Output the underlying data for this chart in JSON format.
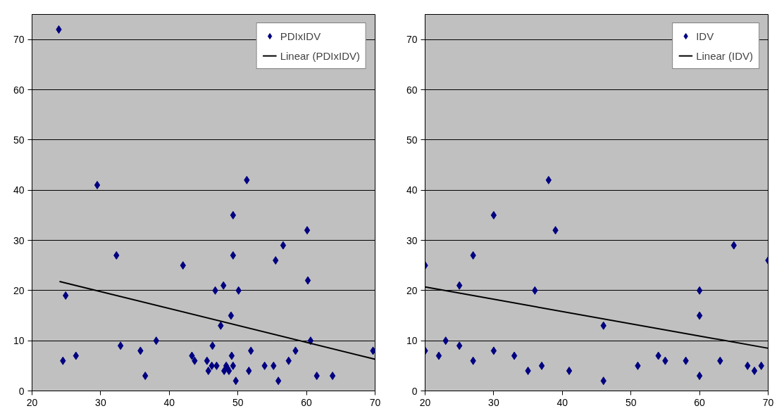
{
  "chart_data": [
    {
      "type": "scatter",
      "xlim": [
        20,
        70
      ],
      "xticks": [
        20,
        30,
        40,
        50,
        60,
        70
      ],
      "ylim": [
        0,
        75
      ],
      "yticks": [
        0,
        10,
        20,
        30,
        40,
        50,
        60,
        70
      ],
      "grid": "y",
      "legend": "top right",
      "series": [
        {
          "name": "PDIxIDV",
          "marker": "diamond",
          "color": "#000080",
          "x": [
            23.9,
            24.5,
            24.9,
            26.4,
            29.5,
            32.3,
            32.9,
            35.8,
            36.5,
            38.1,
            42,
            43.3,
            43.7,
            45.5,
            45.7,
            46.2,
            46.3,
            46.7,
            46.9,
            47.5,
            47.9,
            48,
            48.3,
            48.5,
            48.7,
            49,
            49.1,
            49.3,
            49.3,
            49.3,
            49.7,
            50.1,
            51.3,
            51.6,
            51.9,
            53.9,
            55.2,
            55.5,
            55.9,
            56.6,
            57.4,
            58.4,
            60.1,
            60.2,
            60.6,
            61.5,
            63.8,
            69.7
          ],
          "values": [
            72,
            6,
            19,
            7,
            41,
            27,
            9,
            8,
            3,
            10,
            25,
            7,
            6,
            6,
            4,
            5,
            9,
            20,
            5,
            13,
            21,
            4,
            5,
            4.5,
            4,
            15,
            7,
            35,
            27,
            5,
            2,
            20,
            42,
            4,
            8,
            5,
            5,
            26,
            2,
            29,
            6,
            8,
            32,
            22,
            10,
            3,
            3,
            8
          ]
        },
        {
          "name": "Linear (PDIxIDV)",
          "type": "line",
          "color": "#000000",
          "x": [
            24,
            70
          ],
          "values": [
            21.8,
            6.3
          ]
        }
      ]
    },
    {
      "type": "scatter",
      "xlim": [
        20,
        70
      ],
      "xticks": [
        20,
        30,
        40,
        50,
        60,
        70
      ],
      "ylim": [
        0,
        75
      ],
      "yticks": [
        0,
        10,
        20,
        30,
        40,
        50,
        60,
        70
      ],
      "grid": "y",
      "legend": "top right",
      "series": [
        {
          "name": "IDV",
          "marker": "diamond",
          "color": "#000080",
          "x": [
            20,
            20,
            22,
            23,
            25,
            25,
            27,
            27,
            30,
            30,
            33,
            35,
            36,
            37,
            38,
            39,
            41,
            46,
            46,
            51,
            54,
            55,
            58,
            60,
            60,
            60,
            63,
            65,
            67,
            68,
            69,
            70
          ],
          "values": [
            25,
            8,
            7,
            10,
            21,
            9,
            27,
            6,
            35,
            8,
            7,
            4,
            20,
            5,
            42,
            32,
            4,
            13,
            2,
            5,
            7,
            6,
            6,
            20,
            15,
            3,
            6,
            29,
            5,
            4,
            5,
            26
          ]
        },
        {
          "name": "Linear (IDV)",
          "type": "line",
          "color": "#000000",
          "x": [
            20,
            70
          ],
          "values": [
            20.7,
            8.5
          ]
        }
      ]
    }
  ]
}
